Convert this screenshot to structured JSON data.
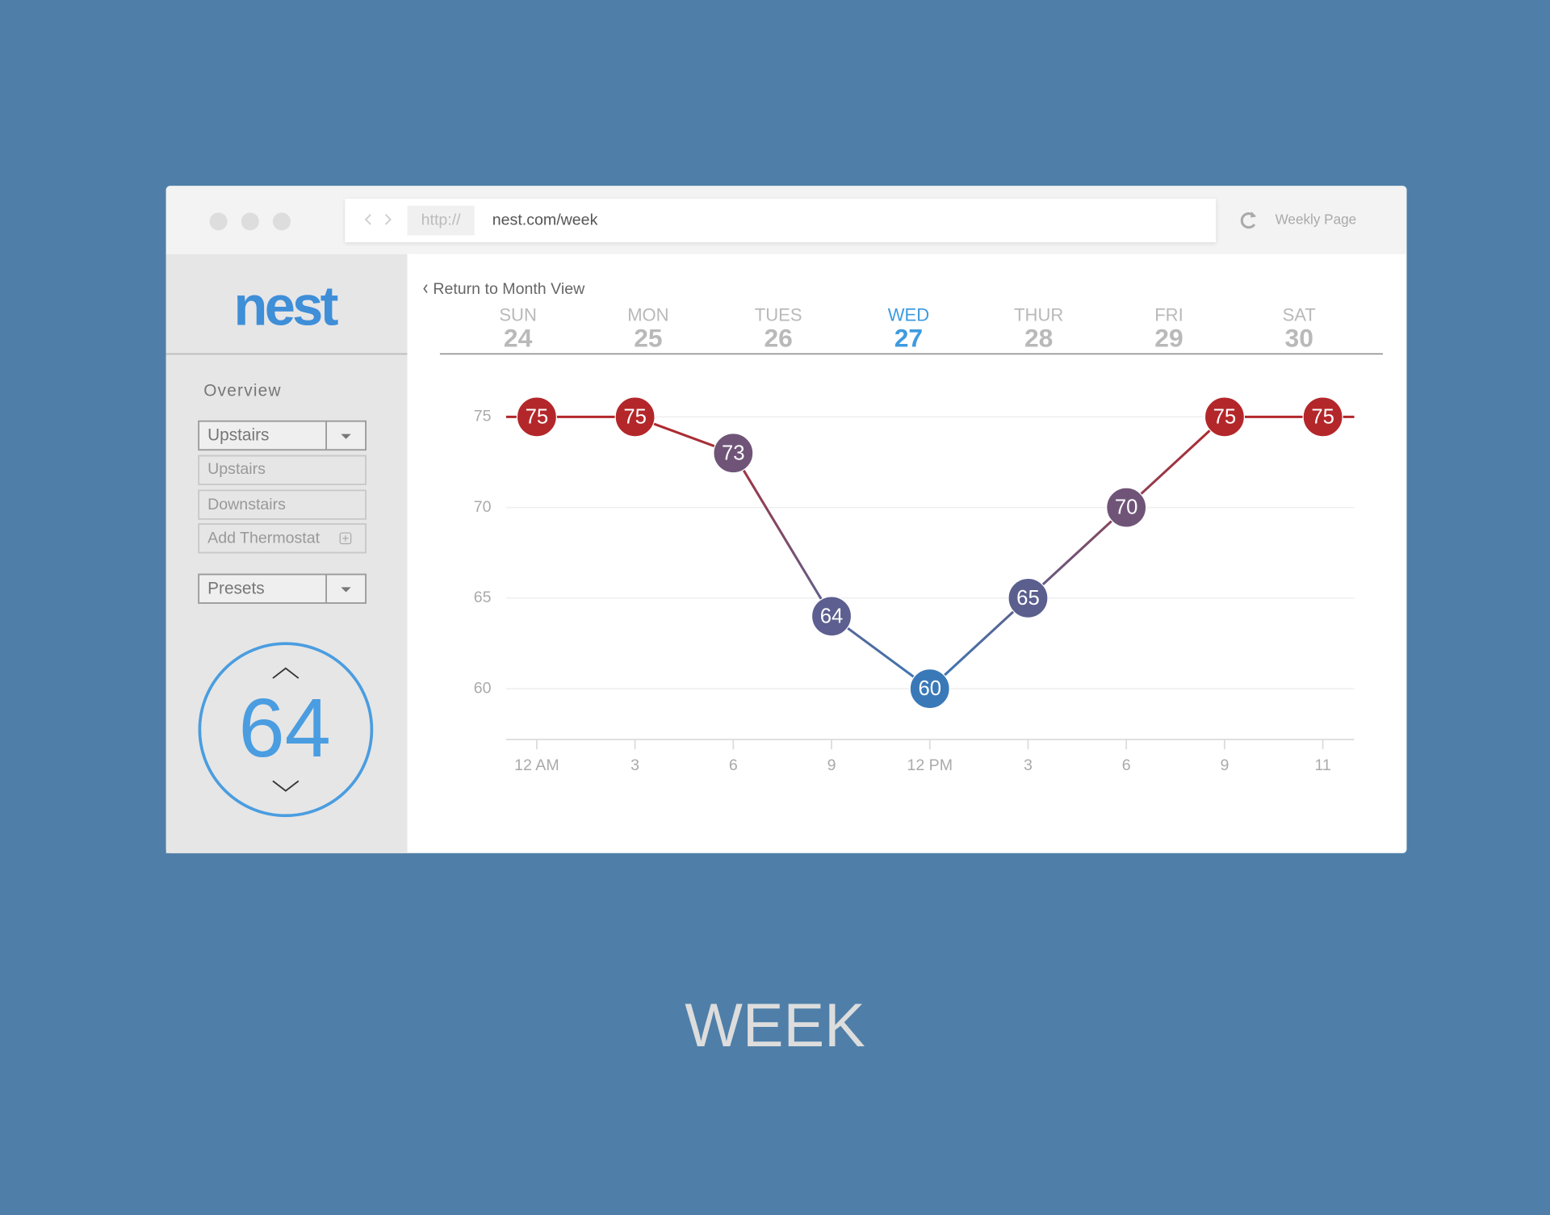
{
  "browser": {
    "url_prefix": "http://",
    "url": "nest.com/week",
    "page_label": "Weekly Page"
  },
  "sidebar": {
    "logo": "nest",
    "overview": "Overview",
    "zone_select": "Upstairs",
    "zones": [
      "Upstairs",
      "Downstairs",
      "Add Thermostat"
    ],
    "presets": "Presets",
    "thermostat": 64
  },
  "header": {
    "back_link": "Return to Month View",
    "days": [
      {
        "name": "SUN",
        "date": 24,
        "color": "#b9b9b9"
      },
      {
        "name": "MON",
        "date": 25,
        "color": "#b9b9b9"
      },
      {
        "name": "TUES",
        "date": 26,
        "color": "#b9b9b9"
      },
      {
        "name": "WED",
        "date": 27,
        "color": "#3e9be0"
      },
      {
        "name": "THUR",
        "date": 28,
        "color": "#b9b9b9"
      },
      {
        "name": "FRI",
        "date": 29,
        "color": "#b9b9b9"
      },
      {
        "name": "SAT",
        "date": 30,
        "color": "#b9b9b9"
      }
    ]
  },
  "chart_data": {
    "type": "line",
    "categories": [
      "12 AM",
      "3",
      "6",
      "9",
      "12 PM",
      "3",
      "6",
      "9",
      "11"
    ],
    "values": [
      75,
      75,
      73,
      64,
      60,
      65,
      70,
      75,
      75
    ],
    "point_colors": [
      "#b3272a",
      "#b3272a",
      "#6f5478",
      "#5c5f8f",
      "#3a79b8",
      "#5a5f8e",
      "#6f5478",
      "#b3272a",
      "#b3272a"
    ],
    "line_colors": [
      "#b3272a",
      "#3a79b8"
    ],
    "ylim": [
      57.2,
      77
    ],
    "yticks": [
      60,
      65,
      70,
      75
    ],
    "grid": true
  },
  "caption": "WEEK"
}
